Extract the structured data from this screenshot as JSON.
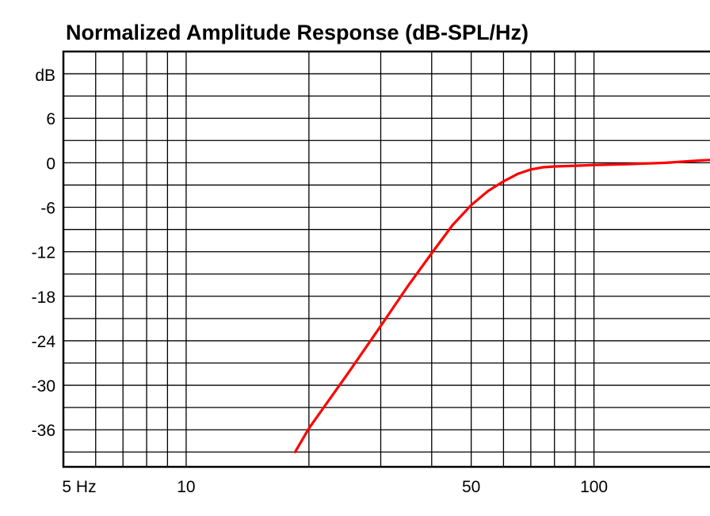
{
  "chart_data": {
    "type": "line",
    "title": "Normalized Amplitude Response (dB-SPL/Hz)",
    "y_unit_label": "dB",
    "x_scale": "log",
    "xlim": [
      5,
      196
    ],
    "ylim": [
      -41,
      15
    ],
    "x_tick_labels": [
      {
        "x": 5,
        "label": "5 Hz"
      },
      {
        "x": 10,
        "label": "10"
      },
      {
        "x": 50,
        "label": "50"
      },
      {
        "x": 100,
        "label": "100"
      }
    ],
    "y_tick_labels": [
      {
        "y": 6,
        "label": "6"
      },
      {
        "y": 0,
        "label": "0"
      },
      {
        "y": -6,
        "label": "-6"
      },
      {
        "y": -12,
        "label": "-12"
      },
      {
        "y": -18,
        "label": "-18"
      },
      {
        "y": -24,
        "label": "-24"
      },
      {
        "y": -30,
        "label": "-30"
      },
      {
        "y": -36,
        "label": "-36"
      }
    ],
    "x_grid": [
      6,
      7,
      8,
      9,
      10,
      20,
      30,
      40,
      50,
      60,
      70,
      80,
      90,
      100
    ],
    "y_grid": [
      12,
      9,
      6,
      3,
      0,
      -3,
      -6,
      -9,
      -12,
      -15,
      -18,
      -21,
      -24,
      -27,
      -30,
      -33,
      -36,
      -39
    ],
    "grid": true,
    "series": [
      {
        "color": "#ff0000",
        "points": [
          [
            18.5,
            -39.0
          ],
          [
            20,
            -35.8
          ],
          [
            25,
            -28.3
          ],
          [
            30,
            -22.0
          ],
          [
            35,
            -16.6
          ],
          [
            40,
            -12.2
          ],
          [
            45,
            -8.4
          ],
          [
            50,
            -5.7
          ],
          [
            55,
            -3.8
          ],
          [
            60,
            -2.5
          ],
          [
            65,
            -1.5
          ],
          [
            70,
            -0.9
          ],
          [
            75,
            -0.6
          ],
          [
            80,
            -0.5
          ],
          [
            90,
            -0.4
          ],
          [
            100,
            -0.3
          ],
          [
            120,
            -0.2
          ],
          [
            150,
            0.0
          ],
          [
            180,
            0.3
          ],
          [
            196,
            0.4
          ]
        ]
      }
    ]
  }
}
